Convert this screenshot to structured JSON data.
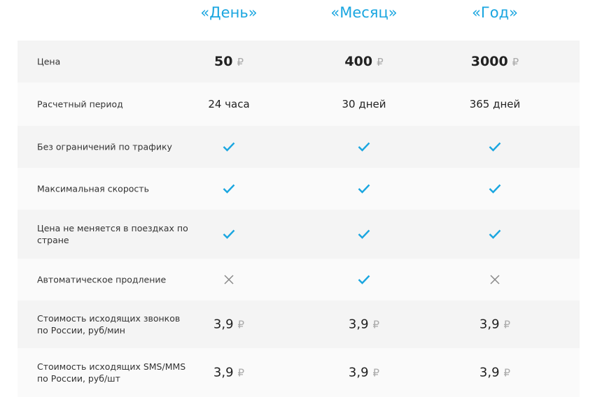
{
  "plans": [
    "«День»",
    "«Месяц»",
    "«Год»"
  ],
  "accent": "#1aa6e0",
  "currency": "₽",
  "rows": [
    {
      "label": "Цена",
      "kind": "price",
      "cells": [
        "50",
        "400",
        "3000"
      ]
    },
    {
      "label": "Расчетный период",
      "kind": "txt",
      "cells": [
        "24 часа",
        "30 дней",
        "365 дней"
      ]
    },
    {
      "label": "Без ограничений по трафику",
      "kind": "icon",
      "cells": [
        "check",
        "check",
        "check"
      ]
    },
    {
      "label": "Максимальная скорость",
      "kind": "icon",
      "cells": [
        "check",
        "check",
        "check"
      ]
    },
    {
      "label": "Цена не меняется в поездках по стране",
      "kind": "icon",
      "cells": [
        "check",
        "check",
        "check"
      ]
    },
    {
      "label": "Автоматическое продление",
      "kind": "icon",
      "cells": [
        "cross",
        "check",
        "cross"
      ]
    },
    {
      "label": "Стоимость исходящих звонков по России, руб/мин",
      "kind": "num",
      "cells": [
        "3,9",
        "3,9",
        "3,9"
      ]
    },
    {
      "label": "Стоимость исходящих SMS/MMS по России, руб/шт",
      "kind": "num",
      "cells": [
        "3,9",
        "3,9",
        "3,9"
      ]
    }
  ]
}
